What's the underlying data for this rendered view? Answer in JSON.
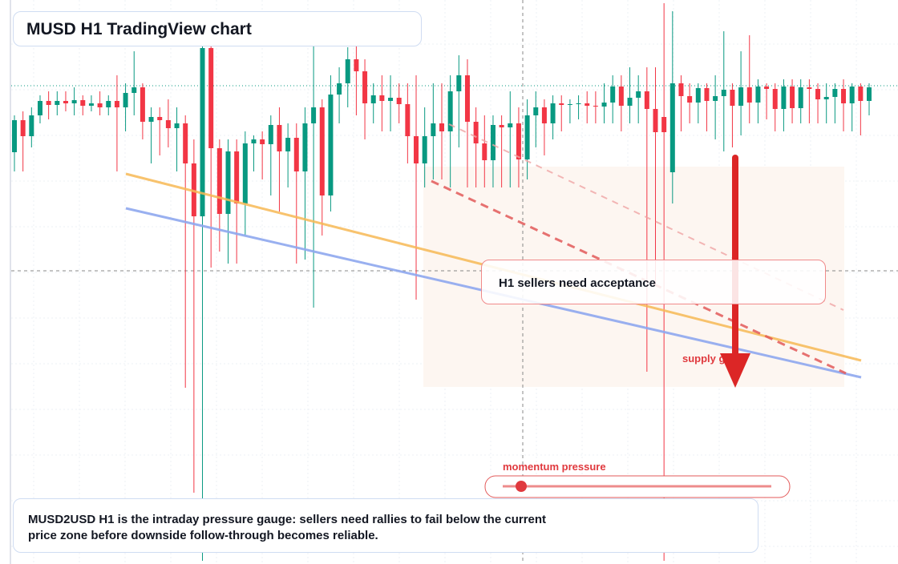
{
  "chart_data": {
    "type": "candlestick",
    "title": "MUSD H1 TradingView chart",
    "ylim": [
      0,
      70.4
    ],
    "up_color": "#089981",
    "down_color": "#f23645",
    "ohlc": [
      [
        51.4,
        56,
        49,
        55.4
      ],
      [
        55.4,
        56.5,
        49,
        53.4
      ],
      [
        53.4,
        57,
        52,
        56
      ],
      [
        56,
        58.5,
        55,
        57.8
      ],
      [
        57.8,
        59,
        55.5,
        57.3
      ],
      [
        57.3,
        59,
        56,
        57.8
      ],
      [
        57.8,
        59,
        56.5,
        57.5
      ],
      [
        57.5,
        59.5,
        56,
        57.9
      ],
      [
        57.9,
        58.5,
        56,
        57.2
      ],
      [
        57.2,
        58.5,
        56.5,
        57.5
      ],
      [
        57.5,
        59,
        56,
        57
      ],
      [
        57,
        58.5,
        56,
        57.8
      ],
      [
        57.8,
        61,
        49,
        57
      ],
      [
        57,
        60,
        54,
        58.8
      ],
      [
        58.8,
        64,
        56,
        59.5
      ],
      [
        59.5,
        60,
        53,
        55.2
      ],
      [
        55.2,
        57,
        50,
        55.8
      ],
      [
        55.8,
        57,
        51,
        55.4
      ],
      [
        55.4,
        58,
        52,
        54.4
      ],
      [
        54.4,
        57,
        49,
        55
      ],
      [
        55,
        56,
        22,
        50
      ],
      [
        50,
        53,
        8.9,
        43.4
      ],
      [
        43.4,
        64.6,
        0.4,
        64.4
      ],
      [
        64.4,
        64.6,
        37,
        51.9
      ],
      [
        51.9,
        53,
        39,
        43.7
      ],
      [
        43.7,
        53,
        37.5,
        51.5
      ],
      [
        51.5,
        53,
        37.5,
        45
      ],
      [
        45,
        54,
        41,
        52.5
      ],
      [
        52.5,
        53.5,
        49,
        53
      ],
      [
        53,
        54,
        48,
        52.4
      ],
      [
        52.4,
        56,
        46,
        54.8
      ],
      [
        54.8,
        57,
        44,
        51.5
      ],
      [
        51.5,
        55,
        47,
        53.2
      ],
      [
        53.2,
        55,
        37.5,
        49
      ],
      [
        49,
        57,
        38,
        55
      ],
      [
        55,
        65,
        32,
        57
      ],
      [
        57,
        58,
        41,
        46
      ],
      [
        46,
        61,
        44,
        58.6
      ],
      [
        58.6,
        62,
        55,
        60
      ],
      [
        60,
        64.5,
        57,
        63
      ],
      [
        63,
        65,
        56,
        61.5
      ],
      [
        61.5,
        63,
        53,
        57.5
      ],
      [
        57.5,
        60,
        55,
        58.5
      ],
      [
        58.5,
        61,
        54,
        57.8
      ],
      [
        57.8,
        61,
        54,
        58.2
      ],
      [
        58.2,
        60,
        55,
        57.4
      ],
      [
        57.4,
        60,
        50,
        53.4
      ],
      [
        53.4,
        61,
        33,
        50
      ],
      [
        50,
        57,
        47,
        53.4
      ],
      [
        53.4,
        60,
        48,
        55
      ],
      [
        55,
        60,
        48,
        54
      ],
      [
        54,
        61,
        47,
        59
      ],
      [
        59,
        63.5,
        52,
        61
      ],
      [
        61,
        63,
        47,
        55.2
      ],
      [
        55.2,
        57,
        47,
        52.5
      ],
      [
        52.5,
        56,
        47,
        50.4
      ],
      [
        50.4,
        56,
        47,
        54.8
      ],
      [
        54.8,
        56,
        47,
        54.5
      ],
      [
        54.5,
        59,
        47,
        55
      ],
      [
        55,
        57,
        47,
        50.5
      ],
      [
        50.5,
        58,
        48,
        56
      ],
      [
        56,
        59,
        52,
        57
      ],
      [
        57,
        58,
        51,
        55
      ],
      [
        55,
        58.5,
        53,
        57.5
      ],
      [
        57.5,
        58.5,
        54,
        57.3
      ],
      [
        57.3,
        58,
        55,
        57.4
      ],
      [
        57.4,
        58.5,
        55.5,
        57.5
      ],
      [
        57.5,
        59,
        55,
        57.2
      ],
      [
        57.2,
        59,
        55,
        57.1
      ],
      [
        57.1,
        60,
        55,
        57.6
      ],
      [
        57.6,
        61,
        55,
        59.6
      ],
      [
        59.6,
        61,
        54,
        57.2
      ],
      [
        57.2,
        62,
        55,
        58.2
      ],
      [
        58.2,
        61,
        55,
        59
      ],
      [
        59,
        62,
        24,
        56.8
      ],
      [
        56.8,
        62,
        35,
        53.9
      ],
      [
        55.8,
        70,
        0.4,
        53.9
      ],
      [
        48.9,
        69,
        45,
        60
      ],
      [
        60,
        61,
        54,
        58.4
      ],
      [
        58.4,
        60,
        55,
        57.6
      ],
      [
        57.6,
        60,
        55,
        59.4
      ],
      [
        59.4,
        60,
        54,
        57.8
      ],
      [
        57.8,
        61,
        53,
        58.4
      ],
      [
        58.4,
        66.5,
        51.5,
        59.2
      ],
      [
        59.2,
        60,
        52,
        57.2
      ],
      [
        57.2,
        64,
        53.5,
        59.5
      ],
      [
        59.5,
        66,
        55,
        57.6
      ],
      [
        57.6,
        60.5,
        55,
        59.6
      ],
      [
        59.6,
        60,
        55.5,
        59.3
      ],
      [
        59.3,
        60,
        54,
        56.8
      ],
      [
        56.8,
        60.5,
        54,
        59.6
      ],
      [
        59.6,
        60.5,
        55,
        56.9
      ],
      [
        56.9,
        60.5,
        55,
        59.5
      ],
      [
        59.5,
        60.5,
        55,
        59.3
      ],
      [
        59.3,
        60,
        55,
        58
      ],
      [
        58,
        60,
        55,
        58.3
      ],
      [
        58.3,
        60,
        55,
        59.3
      ],
      [
        59.3,
        60.5,
        54,
        57.5
      ],
      [
        57.5,
        60,
        54,
        59.6
      ],
      [
        59.6,
        60,
        53.5,
        57.8
      ],
      [
        57.8,
        60,
        56,
        59.5
      ]
    ],
    "zone_label": "H1 sellers need acceptance",
    "supply_label": "supply gate",
    "gauge_label": "momentum pressure",
    "caption": "MUSD2USD H1 is the intraday pressure gauge: sellers need rallies to fail below the current price zone before downside follow-through becomes reliable."
  }
}
